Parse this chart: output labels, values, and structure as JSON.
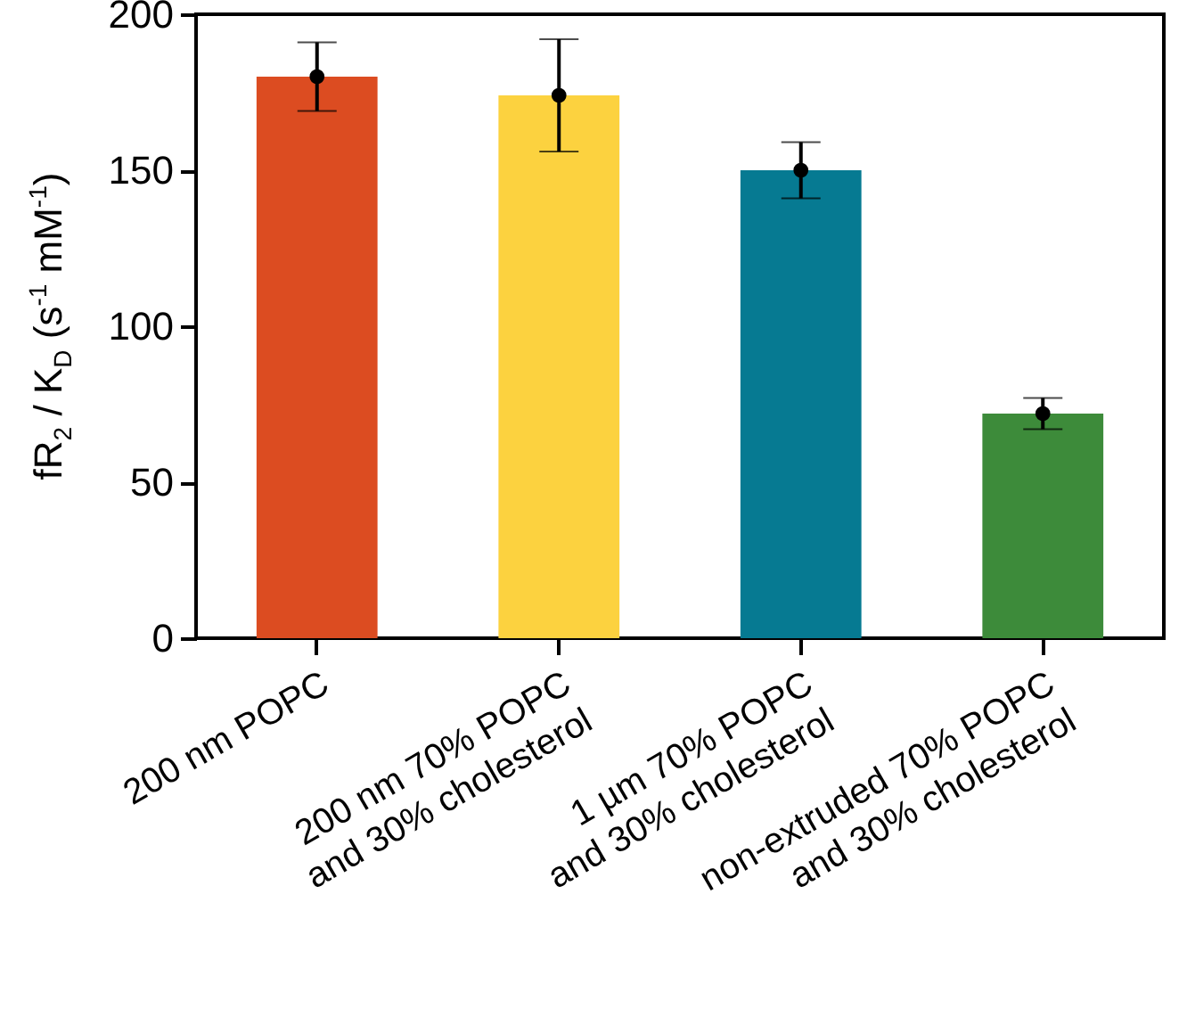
{
  "chart_data": {
    "type": "bar",
    "ylabel": "fR$_{2}$ / K$_{D}$ (s$^{-1}$ mM$^{-1}$)",
    "categories": [
      "200 nm POPC",
      "200 nm 70% POPC\nand 30% cholesterol",
      "1 µm 70% POPC\nand 30% cholesterol",
      "non-extruded 70% POPC\nand 30% cholesterol"
    ],
    "series": [
      {
        "values": [
          180,
          174,
          150,
          72
        ],
        "colors": [
          "#dc4c21",
          "#fcd23f",
          "#067a92",
          "#3d8b3a"
        ],
        "errors": [
          [
            169,
            191
          ],
          [
            156,
            192
          ],
          [
            141,
            159
          ],
          [
            67,
            77
          ]
        ]
      },
      {
        "type": "scatter",
        "x": [
          "200 nm POPC",
          "200 nm 70% POPC\nand 30% cholesterol",
          "1 µm 70% POPC\nand 30% cholesterol",
          "non-extruded 70% POPC\nand 30% cholesterol"
        ],
        "values": [
          180,
          174,
          150,
          72
        ],
        "color": "#000000"
      }
    ],
    "marker": "circle",
    "ylim": [
      0,
      200
    ],
    "yticks": [
      0,
      50,
      100,
      150,
      200
    ],
    "grid": false
  }
}
